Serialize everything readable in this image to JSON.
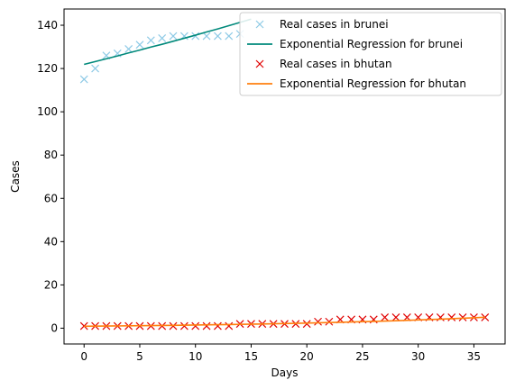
{
  "chart_data": {
    "type": "line",
    "xlabel": "Days",
    "ylabel": "Cases",
    "xlim": [
      -1.8,
      37.8
    ],
    "ylim": [
      -7.3,
      147.5
    ],
    "xticks": [
      0,
      5,
      10,
      15,
      20,
      25,
      30,
      35
    ],
    "yticks": [
      0,
      20,
      40,
      60,
      80,
      100,
      120,
      140
    ],
    "legend_position": "top-right",
    "series": [
      {
        "name": "Real cases in brunei",
        "kind": "scatter",
        "marker": "x",
        "color": "#8ecae6",
        "x": [
          0,
          1,
          2,
          3,
          4,
          5,
          6,
          7,
          8,
          9,
          10,
          11,
          12,
          13,
          14
        ],
        "y": [
          115,
          120,
          126,
          127,
          129,
          131,
          133,
          134,
          135,
          135,
          135,
          135,
          135,
          135,
          136
        ]
      },
      {
        "name": "Exponential Regression for brunei",
        "kind": "line",
        "color": "#00897b",
        "x": [
          0,
          1,
          2,
          3,
          4,
          5,
          6,
          7,
          8,
          9,
          10,
          11,
          12,
          13,
          14,
          15
        ],
        "y": [
          121.9,
          123.2,
          124.5,
          125.8,
          127.2,
          128.5,
          129.9,
          131.2,
          132.6,
          134.0,
          135.4,
          136.9,
          138.3,
          139.8,
          141.3,
          142.8
        ]
      },
      {
        "name": "Real cases in bhutan",
        "kind": "scatter",
        "marker": "x",
        "color": "#e00000",
        "x": [
          0,
          1,
          2,
          3,
          4,
          5,
          6,
          7,
          8,
          9,
          10,
          11,
          12,
          13,
          14,
          15,
          16,
          17,
          18,
          19,
          20,
          21,
          22,
          23,
          24,
          25,
          26,
          27,
          28,
          29,
          30,
          31,
          32,
          33,
          34,
          35,
          36
        ],
        "y": [
          1,
          1,
          1,
          1,
          1,
          1,
          1,
          1,
          1,
          1,
          1,
          1,
          1,
          1,
          2,
          2,
          2,
          2,
          2,
          2,
          2,
          3,
          3,
          4,
          4,
          4,
          4,
          5,
          5,
          5,
          5,
          5,
          5,
          5,
          5,
          5,
          5
        ]
      },
      {
        "name": "Exponential Regression for bhutan",
        "kind": "line",
        "color": "#ff7f0e",
        "x": [
          0,
          2,
          4,
          6,
          8,
          10,
          12,
          14,
          16,
          18,
          20,
          22,
          24,
          26,
          28,
          30,
          32,
          34,
          36
        ],
        "y": [
          0.9,
          0.99,
          1.09,
          1.2,
          1.32,
          1.46,
          1.6,
          1.76,
          1.94,
          2.14,
          2.35,
          2.59,
          2.85,
          3.14,
          3.45,
          3.8,
          4.18,
          4.6,
          5.07
        ]
      }
    ]
  }
}
